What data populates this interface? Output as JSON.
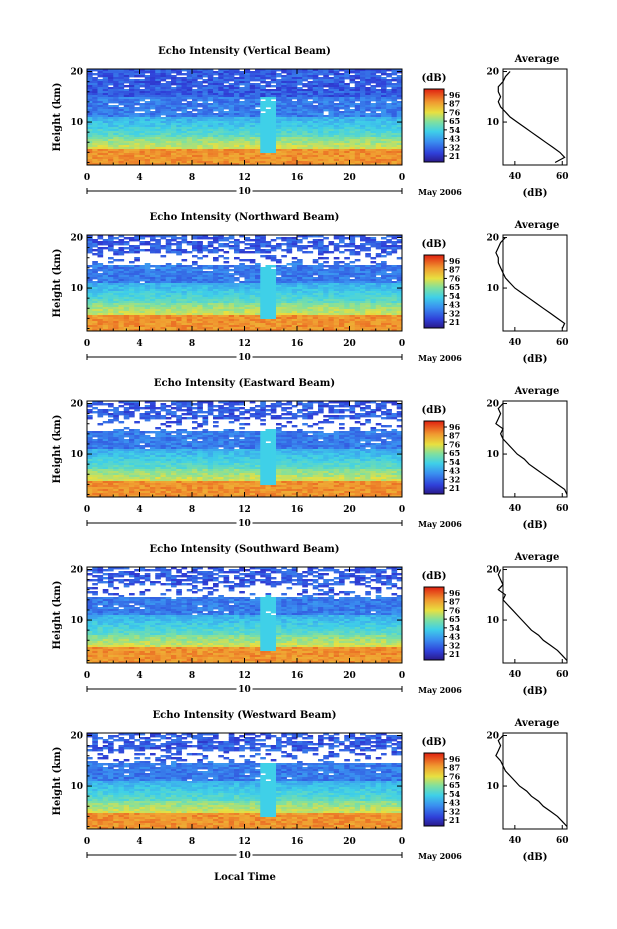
{
  "figure": {
    "xlabel": "Local Time",
    "date_label": "May 2006",
    "day_marker": "10",
    "colorbar_unit": "(dB)",
    "colorbar_ticks": [
      "96",
      "87",
      "76",
      "65",
      "54",
      "43",
      "32",
      "21"
    ],
    "profile_title": "Average",
    "profile_xlabel": "(dB)"
  },
  "chart_data": [
    {
      "type": "heatmap",
      "title": "Echo Intensity (Vertical Beam)",
      "ylabel": "Height (km)",
      "x_ticks": [
        "0",
        "4",
        "8",
        "12",
        "16",
        "20",
        "0"
      ],
      "y_ticks": [
        "20",
        "10"
      ],
      "xlim": [
        0,
        24
      ],
      "ylim": [
        1.5,
        20.5
      ],
      "colorbar": {
        "ticks": [
          "96",
          "87",
          "76",
          "65",
          "54",
          "43",
          "32",
          "21"
        ],
        "range": [
          21,
          96
        ]
      },
      "average_profile": {
        "x_ticks": [
          "40",
          "60"
        ],
        "y_ticks": [
          "20",
          "10"
        ],
        "xlim": [
          35,
          62
        ],
        "height": [
          20,
          19,
          18,
          17,
          16,
          15,
          14,
          13,
          12,
          11,
          10,
          9,
          8,
          7,
          6,
          5,
          4,
          3,
          2
        ],
        "value": [
          38,
          36,
          35,
          33,
          33,
          34,
          33,
          34,
          36,
          38,
          41,
          44,
          47,
          50,
          53,
          56,
          59,
          61,
          57
        ]
      }
    },
    {
      "type": "heatmap",
      "title": "Echo Intensity (Northward Beam)",
      "ylabel": "Height (km)",
      "x_ticks": [
        "0",
        "4",
        "8",
        "12",
        "16",
        "20",
        "0"
      ],
      "y_ticks": [
        "20",
        "10"
      ],
      "xlim": [
        0,
        24
      ],
      "ylim": [
        1.5,
        20.5
      ],
      "colorbar": {
        "ticks": [
          "96",
          "87",
          "76",
          "65",
          "54",
          "43",
          "32",
          "21"
        ],
        "range": [
          21,
          96
        ]
      },
      "average_profile": {
        "x_ticks": [
          "40",
          "60"
        ],
        "y_ticks": [
          "20",
          "10"
        ],
        "xlim": [
          35,
          62
        ],
        "height": [
          20,
          19,
          18,
          17,
          16,
          15,
          14,
          13,
          12,
          11,
          10,
          9,
          8,
          7,
          6,
          5,
          4,
          3,
          2
        ],
        "value": [
          36,
          34,
          33,
          32,
          33,
          33,
          34,
          35,
          36,
          38,
          40,
          43,
          46,
          49,
          52,
          55,
          58,
          61,
          60
        ]
      }
    },
    {
      "type": "heatmap",
      "title": "Echo Intensity (Eastward Beam)",
      "ylabel": "Height (km)",
      "x_ticks": [
        "0",
        "4",
        "8",
        "12",
        "16",
        "20",
        "0"
      ],
      "y_ticks": [
        "20",
        "10"
      ],
      "xlim": [
        0,
        24
      ],
      "ylim": [
        1.5,
        20.5
      ],
      "colorbar": {
        "ticks": [
          "96",
          "87",
          "76",
          "65",
          "54",
          "43",
          "32",
          "21"
        ],
        "range": [
          21,
          96
        ]
      },
      "average_profile": {
        "x_ticks": [
          "40",
          "60"
        ],
        "y_ticks": [
          "20",
          "10"
        ],
        "xlim": [
          35,
          62
        ],
        "height": [
          20,
          19,
          18,
          17,
          16,
          15,
          14,
          13,
          12,
          11,
          10,
          9,
          8,
          7,
          6,
          5,
          4,
          3,
          2
        ],
        "value": [
          35,
          33,
          34,
          33,
          32,
          35,
          34,
          35,
          37,
          39,
          41,
          44,
          46,
          49,
          52,
          55,
          58,
          61,
          62
        ]
      }
    },
    {
      "type": "heatmap",
      "title": "Echo Intensity (Southward Beam)",
      "ylabel": "Height (km)",
      "x_ticks": [
        "0",
        "4",
        "8",
        "12",
        "16",
        "20",
        "0"
      ],
      "y_ticks": [
        "20",
        "10"
      ],
      "xlim": [
        0,
        24
      ],
      "ylim": [
        1.5,
        20.5
      ],
      "colorbar": {
        "ticks": [
          "96",
          "87",
          "76",
          "65",
          "54",
          "43",
          "32",
          "21"
        ],
        "range": [
          21,
          96
        ]
      },
      "average_profile": {
        "x_ticks": [
          "40",
          "60"
        ],
        "y_ticks": [
          "20",
          "10"
        ],
        "xlim": [
          35,
          62
        ],
        "height": [
          20,
          19,
          18,
          17,
          16,
          15,
          14,
          13,
          12,
          11,
          10,
          9,
          8,
          7,
          6,
          5,
          4,
          3,
          2
        ],
        "value": [
          34,
          33,
          34,
          35,
          33,
          36,
          35,
          37,
          39,
          41,
          43,
          45,
          47,
          50,
          52,
          55,
          58,
          60,
          62
        ]
      }
    },
    {
      "type": "heatmap",
      "title": "Echo Intensity (Westward Beam)",
      "ylabel": "Height (km)",
      "x_ticks": [
        "0",
        "4",
        "8",
        "12",
        "16",
        "20",
        "0"
      ],
      "y_ticks": [
        "20",
        "10"
      ],
      "xlim": [
        0,
        24
      ],
      "ylim": [
        1.5,
        20.5
      ],
      "colorbar": {
        "ticks": [
          "96",
          "87",
          "76",
          "65",
          "54",
          "43",
          "32",
          "21"
        ],
        "range": [
          21,
          96
        ]
      },
      "average_profile": {
        "x_ticks": [
          "40",
          "60"
        ],
        "y_ticks": [
          "20",
          "10"
        ],
        "xlim": [
          35,
          62
        ],
        "height": [
          20,
          19,
          18,
          17,
          16,
          15,
          14,
          13,
          12,
          11,
          10,
          9,
          8,
          7,
          6,
          5,
          4,
          3,
          2
        ],
        "value": [
          35,
          33,
          34,
          33,
          32,
          34,
          35,
          36,
          38,
          40,
          42,
          45,
          47,
          50,
          52,
          55,
          58,
          60,
          62
        ]
      }
    }
  ]
}
